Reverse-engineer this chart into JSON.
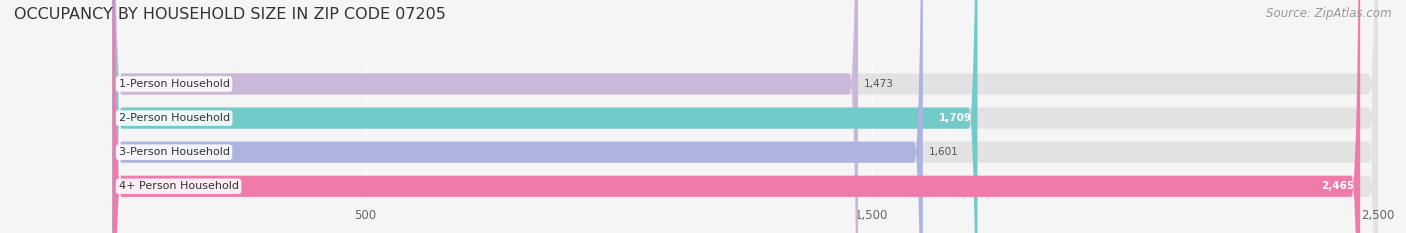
{
  "title": "OCCUPANCY BY HOUSEHOLD SIZE IN ZIP CODE 07205",
  "source": "Source: ZipAtlas.com",
  "categories": [
    "1-Person Household",
    "2-Person Household",
    "3-Person Household",
    "4+ Person Household"
  ],
  "values": [
    1473,
    1709,
    1601,
    2465
  ],
  "bar_colors": [
    "#cbb8d8",
    "#72cbc9",
    "#adb4e0",
    "#f07aaa"
  ],
  "background_color": "#f5f5f5",
  "bar_bg_color": "#e2e2e2",
  "xlim": [
    0,
    2500
  ],
  "xticks": [
    500,
    1500,
    2500
  ],
  "title_fontsize": 11.5,
  "source_fontsize": 8.5,
  "label_fontsize": 8,
  "value_fontsize": 7.5
}
